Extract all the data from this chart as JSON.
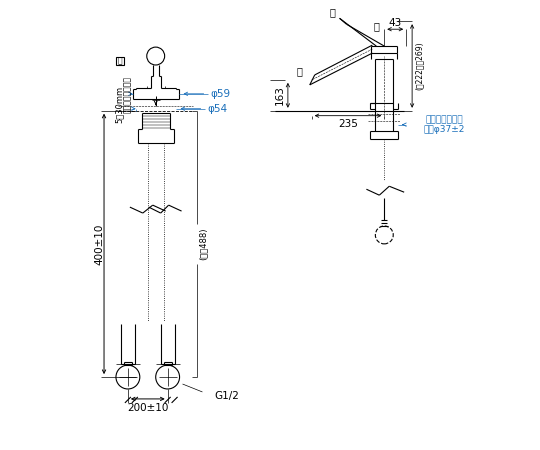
{
  "bg_color": "#ffffff",
  "line_color": "#000000",
  "dim_color": "#1a6fba",
  "fig_w": 5.4,
  "fig_h": 4.5,
  "dpi": 100,
  "annotations": {
    "phi54": "φ54",
    "phi59": "φ59",
    "counter_range": "5～30mm",
    "counter_label": "取付カウンター面",
    "counter_symbol": "図",
    "dim_400": "400±10",
    "dim_naga": "(長さ488)",
    "dim_200": "200±10",
    "g12": "G1/2",
    "open_kanji": "開",
    "close_kanji": "閉",
    "dim_43": "43",
    "dim_163": "163",
    "dim_235": "235",
    "dim_height": "(閉222～開269)",
    "counter_mount": "カウンター取付",
    "hole_dia": "穴径φ37±2"
  }
}
